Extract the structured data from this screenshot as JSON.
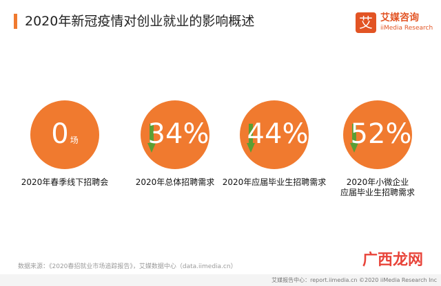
{
  "header": {
    "title": "2020年新冠疫情对创业就业的影响概述",
    "accent_color": "#f07a2f"
  },
  "logo": {
    "mark": "艾",
    "name": "艾媒咨询",
    "subtitle": "iiMedia Research",
    "color": "#e25424"
  },
  "stats": [
    {
      "value": "0",
      "unit": "场",
      "label": "2020年春季线下招聘会",
      "trend_icon": "none"
    },
    {
      "value": "34%",
      "label": "2020年总体招聘需求",
      "trend_icon": "down-arrow-icon"
    },
    {
      "value": "44%",
      "label": "2020年应届毕业生招聘需求",
      "trend_icon": "down-arrow-icon"
    },
    {
      "value": "52%",
      "label_line1": "2020年小微企业",
      "label_line2": "应届毕业生招聘需求",
      "trend_icon": "down-arrow-icon"
    }
  ],
  "colors": {
    "circle": "#f07a2f",
    "arrow": "#5a9e34"
  },
  "source_note": "数据来源：《2020春招就业市场追踪报告》，艾媒数据中心（data.iimedia.cn）",
  "footer": "艾媒报告中心：report.iimedia.cn ©2020  iiMedia Research Inc",
  "watermark": "广西龙网"
}
